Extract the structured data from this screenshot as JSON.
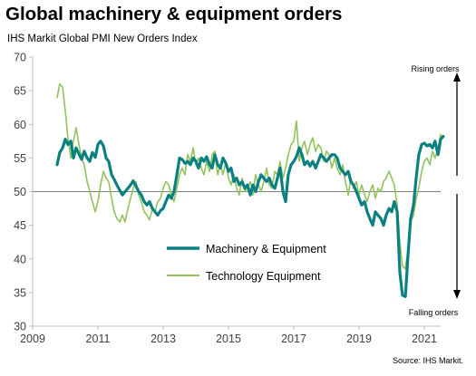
{
  "chart_data": {
    "type": "line",
    "title": "Global machinery & equipment orders",
    "subtitle": "IHS Markit Global  PMI New Orders Index",
    "source": "Source: IHS Markit.",
    "ylim": [
      30,
      70
    ],
    "yticks": [
      30,
      35,
      40,
      45,
      50,
      55,
      60,
      65,
      70
    ],
    "xlim": [
      2009,
      2021.5
    ],
    "xticks": [
      2009,
      2011,
      2013,
      2015,
      2017,
      2019,
      2021
    ],
    "xtick_labels": [
      "2009",
      "2011",
      "2013",
      "2015",
      "2017",
      "2019",
      "2021"
    ],
    "reference_line": 50,
    "annotations": {
      "rising": "Rising orders",
      "falling": "Falling orders"
    },
    "series": [
      {
        "name": "Machinery & Equipment",
        "color": "#0b8080",
        "points": [
          [
            2009.75,
            54.0
          ],
          [
            2009.83,
            55.8
          ],
          [
            2009.92,
            56.5
          ],
          [
            2010.0,
            57.8
          ],
          [
            2010.08,
            57.0
          ],
          [
            2010.17,
            57.5
          ],
          [
            2010.25,
            55.0
          ],
          [
            2010.33,
            56.5
          ],
          [
            2010.42,
            55.6
          ],
          [
            2010.5,
            54.8
          ],
          [
            2010.58,
            56.0
          ],
          [
            2010.67,
            55.0
          ],
          [
            2010.75,
            54.5
          ],
          [
            2010.83,
            55.8
          ],
          [
            2010.92,
            55.1
          ],
          [
            2011.0,
            57.0
          ],
          [
            2011.08,
            57.5
          ],
          [
            2011.17,
            56.8
          ],
          [
            2011.25,
            55.0
          ],
          [
            2011.33,
            54.5
          ],
          [
            2011.42,
            52.5
          ],
          [
            2011.5,
            51.8
          ],
          [
            2011.58,
            51.0
          ],
          [
            2011.67,
            50.2
          ],
          [
            2011.75,
            49.5
          ],
          [
            2011.83,
            50.0
          ],
          [
            2011.92,
            50.5
          ],
          [
            2012.0,
            51.0
          ],
          [
            2012.08,
            51.6
          ],
          [
            2012.17,
            50.8
          ],
          [
            2012.25,
            50.0
          ],
          [
            2012.33,
            49.5
          ],
          [
            2012.42,
            48.5
          ],
          [
            2012.5,
            48.0
          ],
          [
            2012.58,
            48.5
          ],
          [
            2012.67,
            47.5
          ],
          [
            2012.75,
            47.0
          ],
          [
            2012.83,
            46.5
          ],
          [
            2012.92,
            47.2
          ],
          [
            2013.0,
            47.5
          ],
          [
            2013.08,
            48.5
          ],
          [
            2013.17,
            49.5
          ],
          [
            2013.25,
            49.0
          ],
          [
            2013.33,
            50.0
          ],
          [
            2013.42,
            52.5
          ],
          [
            2013.5,
            55.0
          ],
          [
            2013.58,
            54.8
          ],
          [
            2013.67,
            54.2
          ],
          [
            2013.75,
            54.5
          ],
          [
            2013.83,
            54.0
          ],
          [
            2013.92,
            55.0
          ],
          [
            2014.0,
            54.5
          ],
          [
            2014.08,
            53.5
          ],
          [
            2014.17,
            55.0
          ],
          [
            2014.25,
            54.5
          ],
          [
            2014.33,
            55.2
          ],
          [
            2014.42,
            54.0
          ],
          [
            2014.5,
            53.5
          ],
          [
            2014.58,
            55.5
          ],
          [
            2014.67,
            54.0
          ],
          [
            2014.75,
            53.5
          ],
          [
            2014.83,
            55.0
          ],
          [
            2014.92,
            54.2
          ],
          [
            2015.0,
            53.0
          ],
          [
            2015.08,
            53.5
          ],
          [
            2015.17,
            51.5
          ],
          [
            2015.25,
            52.0
          ],
          [
            2015.33,
            51.0
          ],
          [
            2015.42,
            51.5
          ],
          [
            2015.5,
            50.5
          ],
          [
            2015.58,
            51.0
          ],
          [
            2015.67,
            49.5
          ],
          [
            2015.75,
            51.0
          ],
          [
            2015.83,
            50.0
          ],
          [
            2015.92,
            51.5
          ],
          [
            2016.0,
            52.5
          ],
          [
            2016.08,
            52.0
          ],
          [
            2016.17,
            51.5
          ],
          [
            2016.25,
            52.0
          ],
          [
            2016.33,
            51.0
          ],
          [
            2016.42,
            50.5
          ],
          [
            2016.5,
            52.0
          ],
          [
            2016.58,
            53.5
          ],
          [
            2016.67,
            50.0
          ],
          [
            2016.75,
            48.5
          ],
          [
            2016.83,
            52.5
          ],
          [
            2016.92,
            54.0
          ],
          [
            2017.0,
            54.5
          ],
          [
            2017.08,
            55.2
          ],
          [
            2017.17,
            56.5
          ],
          [
            2017.25,
            55.5
          ],
          [
            2017.33,
            54.0
          ],
          [
            2017.42,
            54.5
          ],
          [
            2017.5,
            53.8
          ],
          [
            2017.58,
            54.5
          ],
          [
            2017.67,
            53.5
          ],
          [
            2017.75,
            54.5
          ],
          [
            2017.83,
            55.5
          ],
          [
            2017.92,
            55.0
          ],
          [
            2018.0,
            54.5
          ],
          [
            2018.08,
            55.0
          ],
          [
            2018.17,
            55.5
          ],
          [
            2018.25,
            55.5
          ],
          [
            2018.33,
            55.0
          ],
          [
            2018.42,
            53.5
          ],
          [
            2018.5,
            53.0
          ],
          [
            2018.58,
            52.5
          ],
          [
            2018.67,
            53.0
          ],
          [
            2018.75,
            51.5
          ],
          [
            2018.83,
            51.0
          ],
          [
            2018.92,
            50.0
          ],
          [
            2019.0,
            49.0
          ],
          [
            2019.08,
            48.0
          ],
          [
            2019.17,
            48.5
          ],
          [
            2019.25,
            47.0
          ],
          [
            2019.33,
            46.0
          ],
          [
            2019.42,
            45.0
          ],
          [
            2019.5,
            47.0
          ],
          [
            2019.58,
            46.5
          ],
          [
            2019.67,
            46.0
          ],
          [
            2019.75,
            45.0
          ],
          [
            2019.83,
            46.5
          ],
          [
            2019.92,
            47.5
          ],
          [
            2020.0,
            47.0
          ],
          [
            2020.08,
            48.5
          ],
          [
            2020.17,
            47.0
          ],
          [
            2020.25,
            38.0
          ],
          [
            2020.33,
            34.6
          ],
          [
            2020.42,
            34.4
          ],
          [
            2020.5,
            40.5
          ],
          [
            2020.58,
            46.0
          ],
          [
            2020.67,
            48.0
          ],
          [
            2020.75,
            52.0
          ],
          [
            2020.83,
            55.5
          ],
          [
            2020.92,
            57.0
          ],
          [
            2021.0,
            57.2
          ],
          [
            2021.08,
            56.8
          ],
          [
            2021.17,
            57.0
          ],
          [
            2021.25,
            56.5
          ],
          [
            2021.33,
            57.5
          ],
          [
            2021.42,
            55.5
          ],
          [
            2021.5,
            57.8
          ],
          [
            2021.58,
            58.2
          ]
        ]
      },
      {
        "name": "Technology Equipment",
        "color": "#92c35e",
        "points": [
          [
            2009.75,
            64.0
          ],
          [
            2009.83,
            66.0
          ],
          [
            2009.92,
            65.5
          ],
          [
            2010.0,
            62.0
          ],
          [
            2010.08,
            58.0
          ],
          [
            2010.17,
            55.0
          ],
          [
            2010.25,
            57.5
          ],
          [
            2010.33,
            59.5
          ],
          [
            2010.42,
            57.0
          ],
          [
            2010.5,
            55.0
          ],
          [
            2010.58,
            54.0
          ],
          [
            2010.67,
            51.5
          ],
          [
            2010.75,
            50.0
          ],
          [
            2010.83,
            48.5
          ],
          [
            2010.92,
            47.0
          ],
          [
            2011.0,
            48.5
          ],
          [
            2011.08,
            51.0
          ],
          [
            2011.17,
            53.0
          ],
          [
            2011.25,
            52.0
          ],
          [
            2011.33,
            51.5
          ],
          [
            2011.42,
            49.0
          ],
          [
            2011.5,
            47.0
          ],
          [
            2011.58,
            46.0
          ],
          [
            2011.67,
            45.5
          ],
          [
            2011.75,
            46.5
          ],
          [
            2011.83,
            45.5
          ],
          [
            2011.92,
            47.5
          ],
          [
            2012.0,
            49.0
          ],
          [
            2012.08,
            50.5
          ],
          [
            2012.17,
            51.5
          ],
          [
            2012.25,
            49.5
          ],
          [
            2012.33,
            48.5
          ],
          [
            2012.42,
            47.0
          ],
          [
            2012.5,
            46.5
          ],
          [
            2012.58,
            45.8
          ],
          [
            2012.67,
            47.5
          ],
          [
            2012.75,
            47.0
          ],
          [
            2012.83,
            48.5
          ],
          [
            2012.92,
            49.0
          ],
          [
            2013.0,
            50.5
          ],
          [
            2013.08,
            51.5
          ],
          [
            2013.17,
            51.0
          ],
          [
            2013.25,
            49.5
          ],
          [
            2013.33,
            48.5
          ],
          [
            2013.42,
            50.5
          ],
          [
            2013.5,
            52.5
          ],
          [
            2013.58,
            53.5
          ],
          [
            2013.67,
            52.5
          ],
          [
            2013.75,
            55.5
          ],
          [
            2013.83,
            54.5
          ],
          [
            2013.92,
            56.5
          ],
          [
            2014.0,
            54.0
          ],
          [
            2014.08,
            55.0
          ],
          [
            2014.17,
            53.5
          ],
          [
            2014.25,
            52.5
          ],
          [
            2014.33,
            54.5
          ],
          [
            2014.42,
            53.0
          ],
          [
            2014.5,
            55.5
          ],
          [
            2014.58,
            56.0
          ],
          [
            2014.67,
            52.5
          ],
          [
            2014.75,
            54.0
          ],
          [
            2014.83,
            52.5
          ],
          [
            2014.92,
            54.5
          ],
          [
            2015.0,
            52.0
          ],
          [
            2015.08,
            51.0
          ],
          [
            2015.17,
            52.5
          ],
          [
            2015.25,
            50.5
          ],
          [
            2015.33,
            49.5
          ],
          [
            2015.42,
            52.0
          ],
          [
            2015.5,
            50.0
          ],
          [
            2015.58,
            50.5
          ],
          [
            2015.67,
            51.5
          ],
          [
            2015.75,
            49.5
          ],
          [
            2015.83,
            52.5
          ],
          [
            2015.92,
            51.0
          ],
          [
            2016.0,
            50.0
          ],
          [
            2016.08,
            51.5
          ],
          [
            2016.17,
            53.5
          ],
          [
            2016.25,
            51.0
          ],
          [
            2016.33,
            50.5
          ],
          [
            2016.42,
            53.0
          ],
          [
            2016.5,
            52.5
          ],
          [
            2016.58,
            54.5
          ],
          [
            2016.67,
            52.0
          ],
          [
            2016.75,
            53.5
          ],
          [
            2016.83,
            55.5
          ],
          [
            2016.92,
            57.0
          ],
          [
            2017.0,
            57.5
          ],
          [
            2017.08,
            60.5
          ],
          [
            2017.17,
            54.5
          ],
          [
            2017.25,
            56.5
          ],
          [
            2017.33,
            57.5
          ],
          [
            2017.42,
            55.5
          ],
          [
            2017.5,
            57.0
          ],
          [
            2017.58,
            58.0
          ],
          [
            2017.67,
            56.0
          ],
          [
            2017.75,
            57.0
          ],
          [
            2017.83,
            56.5
          ],
          [
            2017.92,
            54.5
          ],
          [
            2018.0,
            56.0
          ],
          [
            2018.08,
            55.5
          ],
          [
            2018.17,
            53.5
          ],
          [
            2018.25,
            55.0
          ],
          [
            2018.33,
            53.5
          ],
          [
            2018.42,
            52.5
          ],
          [
            2018.5,
            54.0
          ],
          [
            2018.58,
            51.5
          ],
          [
            2018.67,
            49.5
          ],
          [
            2018.75,
            52.0
          ],
          [
            2018.83,
            50.5
          ],
          [
            2018.92,
            51.5
          ],
          [
            2019.0,
            49.5
          ],
          [
            2019.08,
            51.0
          ],
          [
            2019.17,
            49.5
          ],
          [
            2019.25,
            48.5
          ],
          [
            2019.33,
            50.0
          ],
          [
            2019.42,
            51.0
          ],
          [
            2019.5,
            49.0
          ],
          [
            2019.58,
            50.5
          ],
          [
            2019.67,
            50.0
          ],
          [
            2019.75,
            51.5
          ],
          [
            2019.83,
            52.0
          ],
          [
            2019.92,
            53.0
          ],
          [
            2020.0,
            52.0
          ],
          [
            2020.08,
            51.0
          ],
          [
            2020.17,
            48.0
          ],
          [
            2020.25,
            42.5
          ],
          [
            2020.33,
            39.0
          ],
          [
            2020.42,
            38.5
          ],
          [
            2020.5,
            41.5
          ],
          [
            2020.58,
            45.5
          ],
          [
            2020.67,
            46.5
          ],
          [
            2020.75,
            49.0
          ],
          [
            2020.83,
            50.5
          ],
          [
            2020.92,
            53.0
          ],
          [
            2021.0,
            54.5
          ],
          [
            2021.08,
            55.0
          ],
          [
            2021.17,
            54.0
          ],
          [
            2021.25,
            56.0
          ],
          [
            2021.33,
            55.0
          ],
          [
            2021.42,
            56.5
          ],
          [
            2021.5,
            58.5
          ],
          [
            2021.58,
            58.0
          ]
        ]
      }
    ]
  }
}
